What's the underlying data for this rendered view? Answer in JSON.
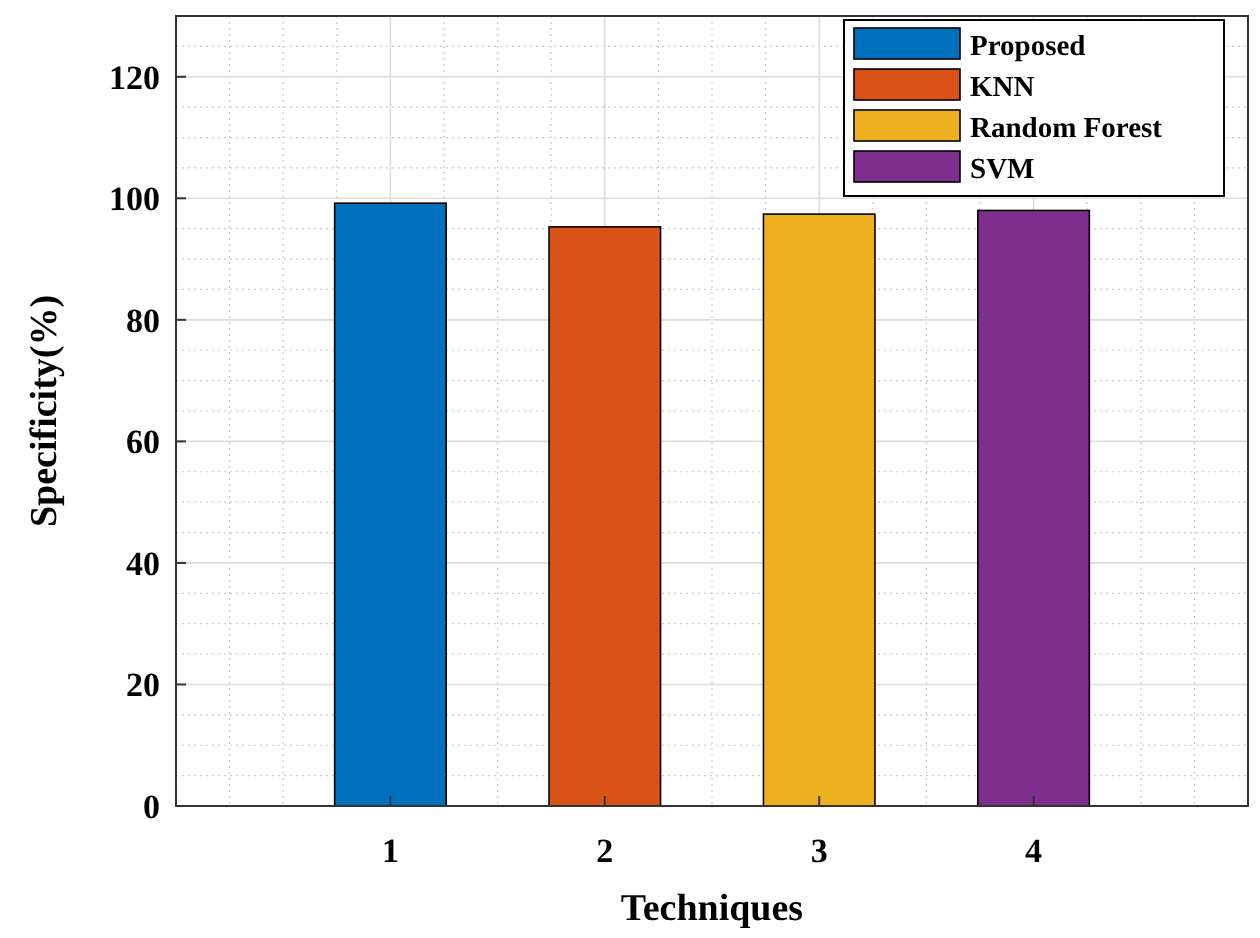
{
  "chart_data": {
    "type": "bar",
    "xlabel": "Techniques",
    "ylabel": "Specificity(%)",
    "xlim": [
      0,
      5
    ],
    "xticks": [
      1,
      2,
      3,
      4
    ],
    "ylim": [
      0,
      130
    ],
    "yticks": [
      0,
      20,
      40,
      60,
      80,
      100,
      120
    ],
    "grid": true,
    "legend": "top right",
    "series": [
      {
        "name": "Proposed",
        "color": "#0072bd",
        "x": [
          1
        ],
        "values": [
          99.2
        ]
      },
      {
        "name": "KNN",
        "color": "#d95319",
        "x": [
          2
        ],
        "values": [
          95.3
        ]
      },
      {
        "name": "Random Forest",
        "color": "#edb120",
        "x": [
          3
        ],
        "values": [
          97.4
        ]
      },
      {
        "name": "SVM",
        "color": "#7e2f8e",
        "x": [
          4
        ],
        "values": [
          98
        ]
      }
    ]
  }
}
